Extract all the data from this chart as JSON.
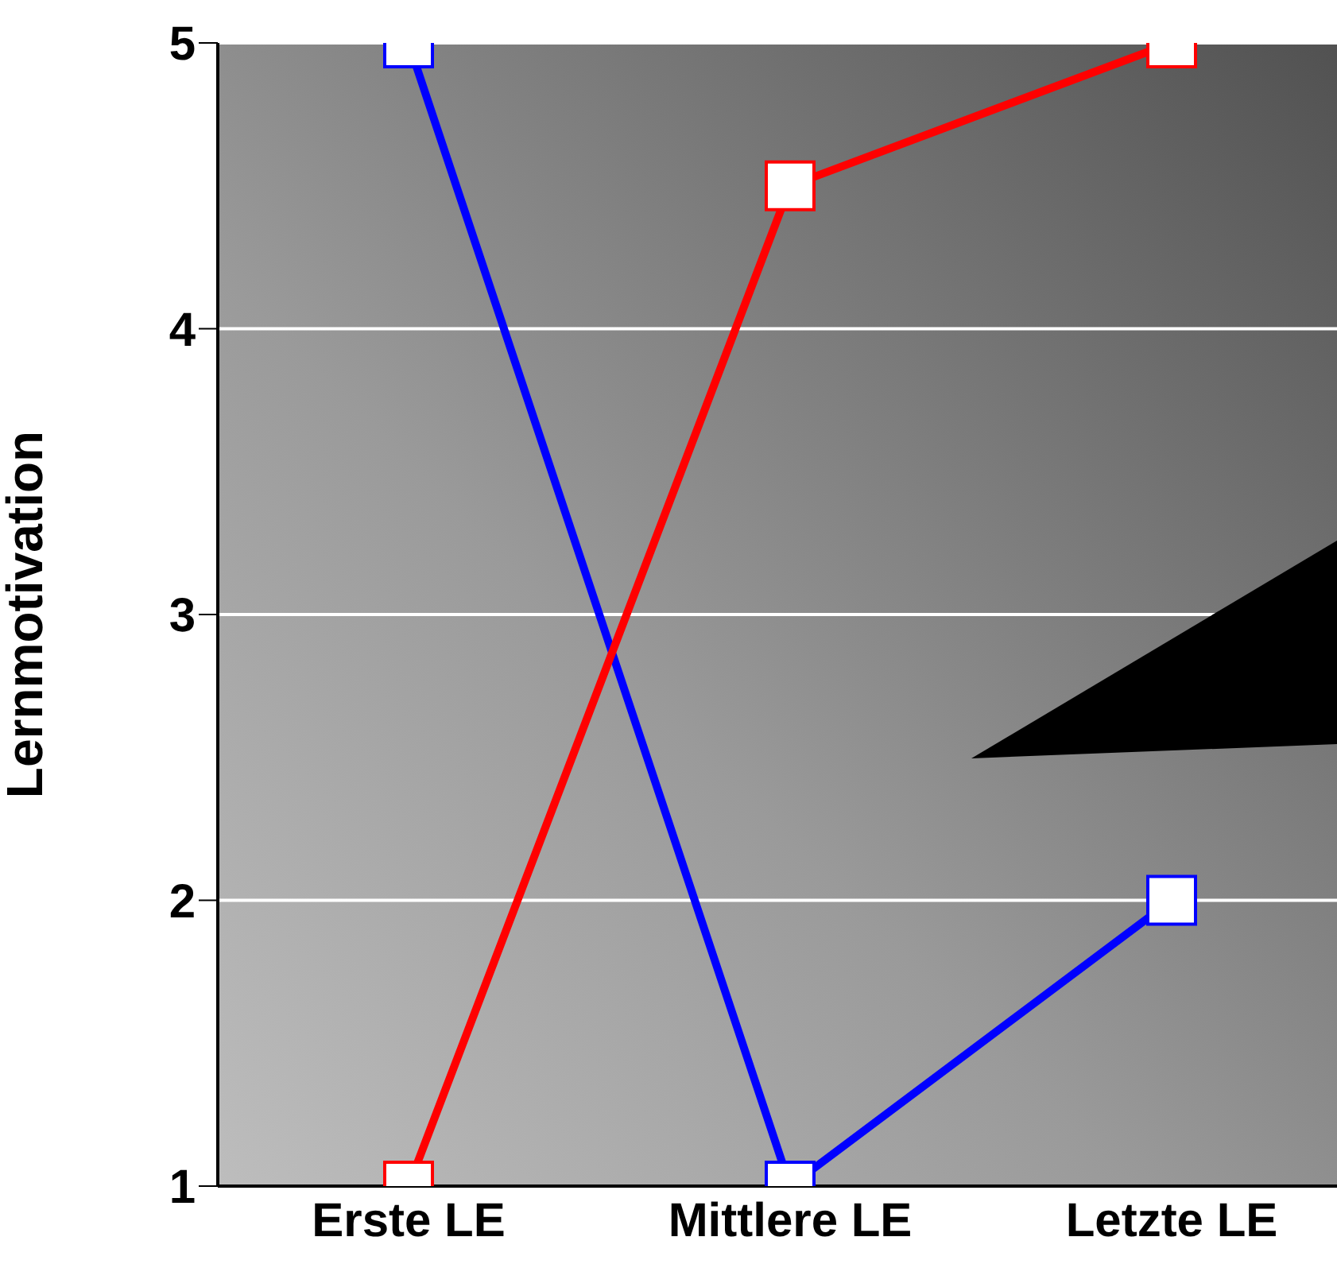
{
  "chart_data": {
    "type": "line",
    "ylabel": "Lernmotivation",
    "categories": [
      "Erste LE",
      "Mittlere LE",
      "Letzte LE"
    ],
    "series": [
      {
        "color": "#0000ff",
        "values": [
          5,
          1,
          2
        ]
      },
      {
        "color": "#ff0000",
        "values": [
          1,
          4.5,
          5
        ]
      }
    ],
    "ylim": [
      1,
      5
    ],
    "yticks": [
      1,
      2,
      3,
      4,
      5
    ],
    "grid": "y",
    "marker": "square",
    "line_style": "solid"
  }
}
